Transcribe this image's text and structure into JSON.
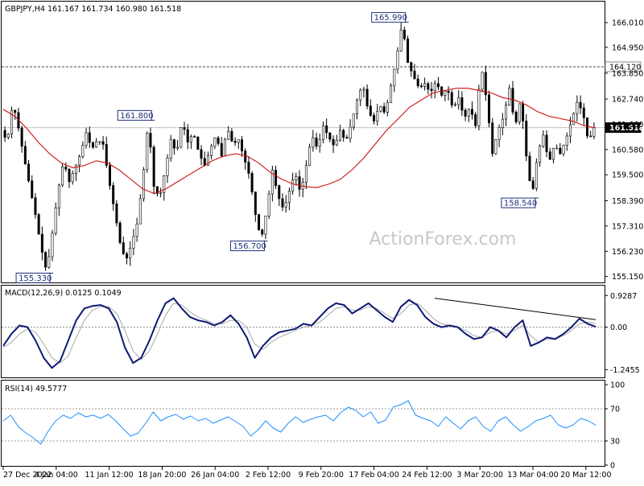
{
  "chart_data": [
    {
      "type": "candlestick",
      "panel": "price",
      "header": "GBPJPY,H4  161.167 161.734 160.980 161.518",
      "watermark": "ActionForex.com",
      "ylim": [
        155.0,
        166.7
      ],
      "yticks": [
        "166.010",
        "164.950",
        "163.850",
        "162.740",
        "161.660",
        "160.580",
        "159.500",
        "158.390",
        "157.310",
        "156.230",
        "155.150"
      ],
      "ytick_values": [
        166.01,
        164.95,
        163.85,
        162.74,
        161.66,
        160.58,
        159.5,
        158.39,
        157.31,
        156.23,
        155.15
      ],
      "hlines": [
        {
          "value": 164.12,
          "label": "164.120",
          "style": "dashed"
        },
        {
          "value": 161.518,
          "label": "161.518",
          "style": "dotted"
        }
      ],
      "annotations": [
        {
          "text": "155.330",
          "value": 155.33
        },
        {
          "text": "161.800",
          "value": 161.8
        },
        {
          "text": "156.700",
          "value": 156.7
        },
        {
          "text": "165.990",
          "value": 165.99
        },
        {
          "text": "158.540",
          "value": 158.54
        }
      ],
      "price_path": [
        161.4,
        160.9,
        162.6,
        161.5,
        160.2,
        159.0,
        157.8,
        156.4,
        155.33,
        157.0,
        158.8,
        160.1,
        159.2,
        159.8,
        160.4,
        161.3,
        160.6,
        161.0,
        160.8,
        159.3,
        158.0,
        156.6,
        155.8,
        156.5,
        157.4,
        159.2,
        161.8,
        159.0,
        158.5,
        159.7,
        161.0,
        160.4,
        161.8,
        160.9,
        161.3,
        160.4,
        159.9,
        160.6,
        161.2,
        160.3,
        161.5,
        160.8,
        161.0,
        160.2,
        159.4,
        157.8,
        156.7,
        158.0,
        159.7,
        158.6,
        158.0,
        158.8,
        159.6,
        158.7,
        159.9,
        161.2,
        160.6,
        161.6,
        161.1,
        160.7,
        161.4,
        160.9,
        161.7,
        162.7,
        163.4,
        162.2,
        161.8,
        162.5,
        162.1,
        163.3,
        164.5,
        165.99,
        164.3,
        163.7,
        163.2,
        163.4,
        163.0,
        163.5,
        162.9,
        163.2,
        162.3,
        162.8,
        161.9,
        162.4,
        161.6,
        164.2,
        162.6,
        160.4,
        161.4,
        162.0,
        163.2,
        161.5,
        162.8,
        160.3,
        158.54,
        160.4,
        161.2,
        160.0,
        160.8,
        160.4,
        161.0,
        161.8,
        162.6,
        162.2,
        160.9,
        161.518
      ],
      "ma_path": [
        162.3,
        162.0,
        161.5,
        160.9,
        160.4,
        160.0,
        159.8,
        159.9,
        160.1,
        160.0,
        159.7,
        159.3,
        158.9,
        158.7,
        158.9,
        159.2,
        159.5,
        159.8,
        160.1,
        160.3,
        160.4,
        160.3,
        160.0,
        159.6,
        159.3,
        159.1,
        159.0,
        158.95,
        159.1,
        159.3,
        159.7,
        160.2,
        160.8,
        161.4,
        161.9,
        162.4,
        162.7,
        163.0,
        163.1,
        163.2,
        163.2,
        163.1,
        163.0,
        162.8,
        162.7,
        162.5,
        162.2,
        162.0,
        161.9,
        161.8,
        161.6,
        161.5
      ],
      "xticks": [
        "27 Dec 2022",
        "4 Jan 04:00",
        "11 Jan 12:00",
        "18 Jan 20:00",
        "26 Jan 04:00",
        "2 Feb 12:00",
        "9 Feb 20:00",
        "17 Feb 04:00",
        "24 Feb 12:00",
        "3 Mar 20:00",
        "13 Mar 04:00",
        "20 Mar 12:00"
      ]
    },
    {
      "type": "line",
      "panel": "macd",
      "header": "MACD(12,26,9) 0.0125 0.1049",
      "ylim": [
        -1.45,
        1.1
      ],
      "yticks": [
        "0.9287",
        "0.00",
        "-1.2455"
      ],
      "ytick_values": [
        0.9287,
        0.0,
        -1.2455
      ],
      "series": [
        {
          "values": [
            -0.55,
            -0.2,
            0.05,
            0.0,
            -0.4,
            -0.9,
            -1.2,
            -1.0,
            -0.4,
            0.2,
            0.55,
            0.62,
            0.65,
            0.55,
            0.15,
            -0.6,
            -1.05,
            -0.9,
            -0.4,
            0.2,
            0.7,
            0.85,
            0.55,
            0.3,
            0.2,
            0.15,
            0.05,
            0.15,
            0.35,
            0.1,
            -0.3,
            -0.9,
            -0.55,
            -0.3,
            -0.15,
            -0.1,
            -0.05,
            0.1,
            0.05,
            0.3,
            0.55,
            0.7,
            0.65,
            0.4,
            0.55,
            0.7,
            0.5,
            0.3,
            0.15,
            0.6,
            0.8,
            0.65,
            0.3,
            0.1,
            0.0,
            0.05,
            0.0,
            -0.2,
            -0.35,
            -0.3,
            0.0,
            -0.1,
            -0.3,
            0.0,
            0.2,
            -0.55,
            -0.45,
            -0.3,
            -0.35,
            -0.2,
            0.0,
            0.25,
            0.1,
            0.0125
          ]
        },
        {
          "values": [
            -0.6,
            -0.45,
            -0.2,
            -0.05,
            -0.15,
            -0.5,
            -0.9,
            -1.05,
            -0.85,
            -0.3,
            0.2,
            0.5,
            0.6,
            0.6,
            0.4,
            -0.1,
            -0.7,
            -0.95,
            -0.7,
            -0.2,
            0.35,
            0.7,
            0.65,
            0.45,
            0.3,
            0.2,
            0.1,
            0.1,
            0.2,
            0.2,
            0.0,
            -0.5,
            -0.65,
            -0.45,
            -0.3,
            -0.2,
            -0.1,
            0.0,
            0.05,
            0.15,
            0.35,
            0.55,
            0.6,
            0.5,
            0.5,
            0.6,
            0.55,
            0.4,
            0.25,
            0.4,
            0.65,
            0.7,
            0.5,
            0.25,
            0.1,
            0.05,
            0.0,
            -0.1,
            -0.25,
            -0.3,
            -0.15,
            -0.1,
            -0.2,
            -0.1,
            0.05,
            -0.25,
            -0.45,
            -0.35,
            -0.35,
            -0.25,
            -0.1,
            0.1,
            0.15,
            0.1049
          ]
        }
      ],
      "trendline": [
        0.85,
        0.22
      ]
    },
    {
      "type": "line",
      "panel": "rsi",
      "header": "RSI(14) 49.5777",
      "ylim": [
        0,
        100
      ],
      "yticks": [
        "100",
        "70",
        "30",
        "0"
      ],
      "ytick_values": [
        100,
        70,
        30,
        0
      ],
      "series": [
        {
          "values": [
            55,
            62,
            48,
            40,
            34,
            26,
            42,
            55,
            62,
            58,
            65,
            60,
            62,
            58,
            63,
            55,
            45,
            36,
            40,
            52,
            66,
            55,
            60,
            63,
            57,
            61,
            55,
            58,
            52,
            56,
            60,
            54,
            48,
            36,
            44,
            55,
            46,
            41,
            52,
            60,
            53,
            57,
            60,
            62,
            55,
            65,
            72,
            68,
            60,
            66,
            52,
            56,
            72,
            75,
            80,
            62,
            58,
            55,
            48,
            60,
            52,
            45,
            55,
            60,
            48,
            42,
            55,
            60,
            50,
            42,
            48,
            55,
            58,
            62,
            50,
            46,
            50,
            58,
            55,
            49.5777
          ]
        }
      ]
    }
  ]
}
